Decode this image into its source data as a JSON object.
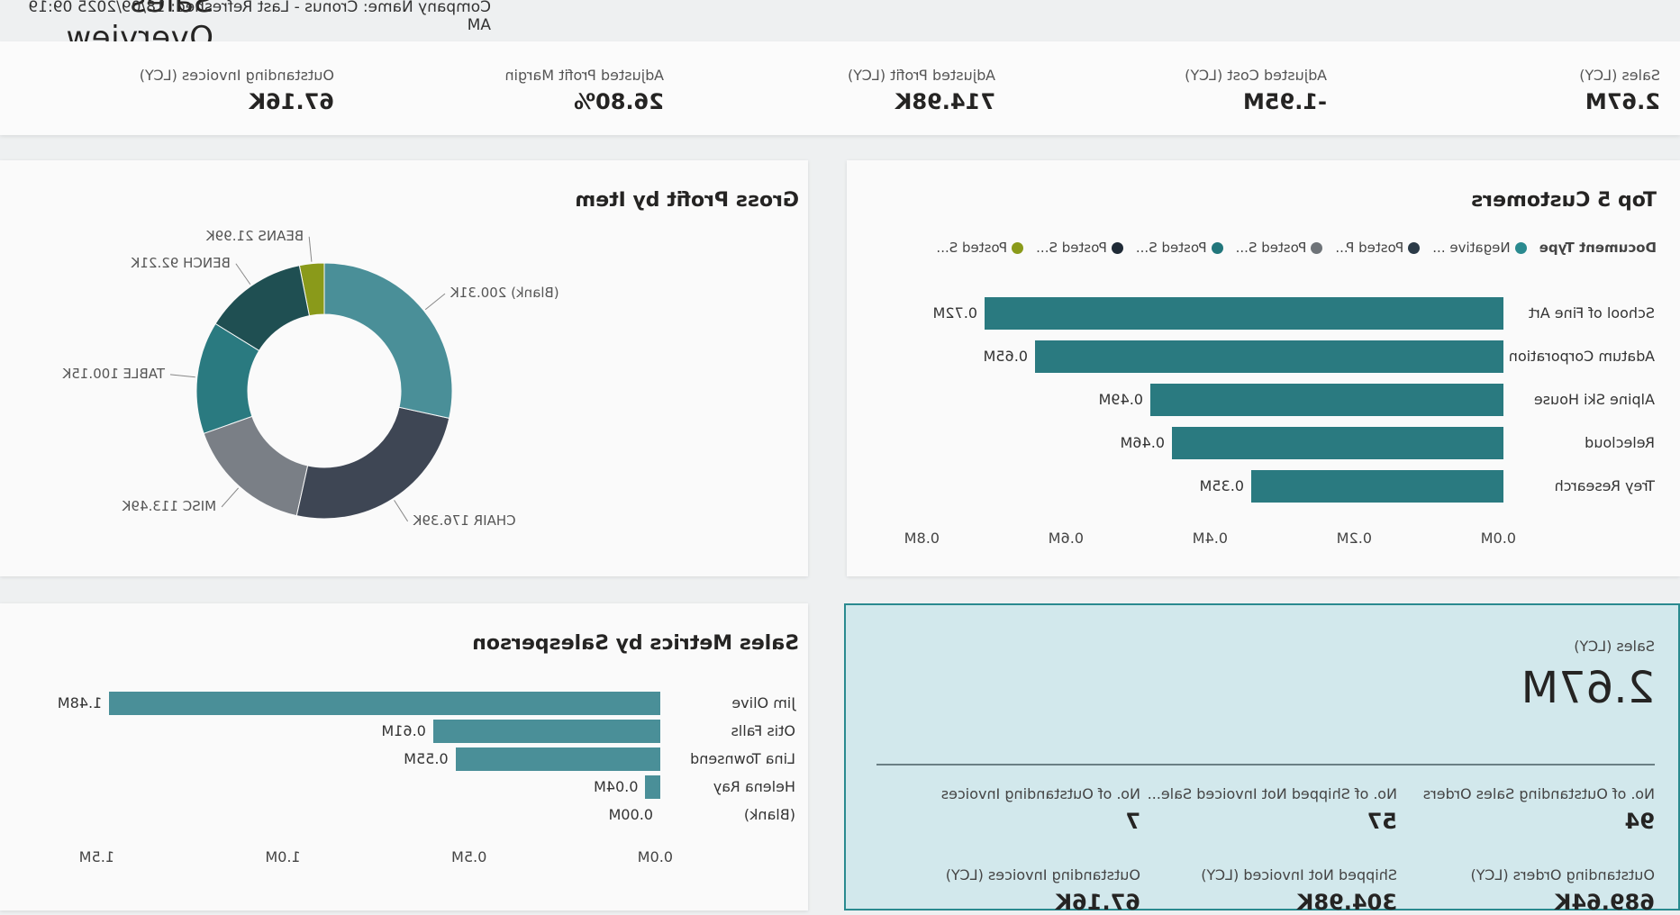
{
  "header": {
    "page_title": "Sales Overview",
    "refresh_info": "Company Name: Cronus - Last Refreshed: 18/09/2025 09:19 AM"
  },
  "kpis": [
    {
      "label": "Sales (LCY)",
      "value": "2.67M"
    },
    {
      "label": "Adjusted Cost (LCY)",
      "value": "-1.95M"
    },
    {
      "label": "Adjusted Profit (LCY)",
      "value": "714.98K"
    },
    {
      "label": "Adjusted Profit Margin",
      "value": "26.80%"
    },
    {
      "label": "Outstanding Invoices (LCY)",
      "value": "67.16K"
    }
  ],
  "top_customers": {
    "title": "Top 5 Customers",
    "legend_title": "Document Type",
    "legend": [
      {
        "label": "Negative ...",
        "color": "#2a8a8f"
      },
      {
        "label": "Posted P...",
        "color": "#2b3a47"
      },
      {
        "label": "Posted S...",
        "color": "#6e7378"
      },
      {
        "label": "Posted S...",
        "color": "#21767b"
      },
      {
        "label": "Posted S...",
        "color": "#1f2a36"
      },
      {
        "label": "Posted S...",
        "color": "#8a9a1a"
      }
    ]
  },
  "gross_profit": {
    "title": "Gross Profit by Item"
  },
  "salesperson": {
    "title": "Sales Metrics by Salesperson"
  },
  "sales_card": {
    "label": "Sales (LCY)",
    "value": "2.67M",
    "metrics": [
      {
        "label": "No. of Outstanding Sales Orders",
        "value": "94"
      },
      {
        "label": "No. of Shipped Not Invoiced Sale...",
        "value": "57"
      },
      {
        "label": "No. of Outstanding Invoices",
        "value": "7"
      },
      {
        "label": "Outstanding Orders (LCY)",
        "value": "689.64K"
      },
      {
        "label": "Shipped Not Invoiced (LCY)",
        "value": "304.98K"
      },
      {
        "label": "Outstanding Invoices (LCY)",
        "value": "67.16K"
      }
    ]
  },
  "chart_data": [
    {
      "type": "bar",
      "orientation": "horizontal",
      "title": "Top 5 Customers",
      "categories": [
        "School of Fine Art",
        "Adatum Corporation",
        "Alpine Ski House",
        "Relecloud",
        "Trey Research"
      ],
      "values": [
        0.72,
        0.65,
        0.49,
        0.46,
        0.35
      ],
      "value_labels": [
        "0.72M",
        "0.65M",
        "0.49M",
        "0.46M",
        "0.35M"
      ],
      "tick_labels": [
        "0.0M",
        "0.2M",
        "0.4M",
        "0.6M",
        "0.8M"
      ],
      "xlim": [
        0,
        0.8
      ],
      "color": "#2a7a80"
    },
    {
      "type": "pie",
      "donut": true,
      "title": "Gross Profit by Item",
      "slices": [
        {
          "label": "BEANS",
          "value": 21.99,
          "text": "BEANS 21.99K",
          "color": "#8a9a1a"
        },
        {
          "label": "BENCH",
          "value": 92.21,
          "text": "BENCH 92.21K",
          "color": "#1f4f52"
        },
        {
          "label": "TABLE",
          "value": 100.15,
          "text": "TABLE 100.15K",
          "color": "#2a7a80"
        },
        {
          "label": "MISC",
          "value": 113.49,
          "text": "MISC 113.49K",
          "color": "#7a7f86"
        },
        {
          "label": "CHAIR",
          "value": 176.39,
          "text": "CHAIR 176.39K",
          "color": "#3e4654"
        },
        {
          "label": "(Blank)",
          "value": 200.31,
          "text": "(Blank) 200.31K",
          "color": "#4a8f98"
        }
      ],
      "extra_colors": [
        "#6aa82a"
      ]
    },
    {
      "type": "bar",
      "orientation": "horizontal",
      "title": "Sales Metrics by Salesperson",
      "categories": [
        "Jim Olive",
        "Otis Falls",
        "Lina Townsend",
        "Helena Ray",
        "(Blank)"
      ],
      "values": [
        1.48,
        0.61,
        0.55,
        0.04,
        0.0
      ],
      "value_labels": [
        "1.48M",
        "0.61M",
        "0.55M",
        "0.04M",
        "0.00M"
      ],
      "tick_labels": [
        "0.0M",
        "0.5M",
        "1.0M",
        "1.5M"
      ],
      "xlim": [
        0,
        1.5
      ],
      "color": "#4a8f98"
    }
  ]
}
